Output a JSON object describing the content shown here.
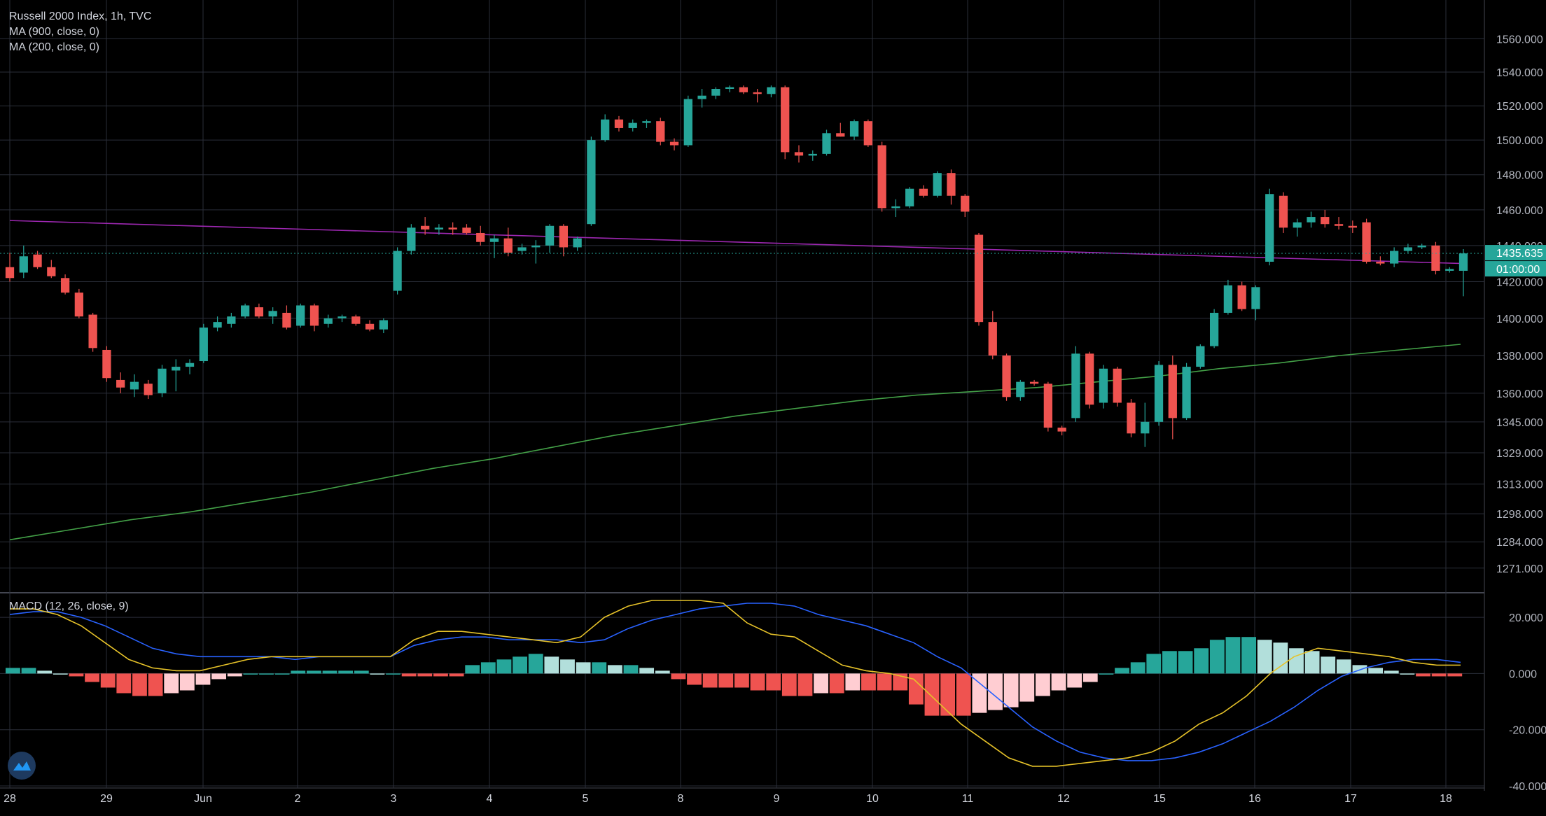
{
  "title": "Russell 2000 Index, 1h, TVC",
  "indicators": {
    "ma900": "MA (900, close, 0)",
    "ma200": "MA (200, close, 0)",
    "macd": "MACD (12, 26, close, 9)"
  },
  "colors": {
    "background": "#000000",
    "grid": "#2a2e39",
    "up": "#26a69a",
    "down": "#ef5350",
    "ma900": "#9c27b0",
    "ma200": "#43a047",
    "macd_line": "#2962ff",
    "signal_line": "#e6c229",
    "hist_up_strong": "#26a69a",
    "hist_up_weak": "#b2dfdb",
    "hist_down_strong": "#ef5350",
    "hist_down_weak": "#ffcdd2",
    "last_price_badge": "#26a69a"
  },
  "price_axis": {
    "ticks": [
      "1560.000",
      "1540.000",
      "1520.000",
      "1500.000",
      "1480.000",
      "1460.000",
      "1440.000",
      "1420.000",
      "1400.000",
      "1380.000",
      "1360.000",
      "1345.000",
      "1329.000",
      "1313.000",
      "1298.000",
      "1284.000",
      "1271.000"
    ],
    "last_price_label": "1435.635",
    "countdown_label": "01:00:00"
  },
  "macd_axis": {
    "ticks": [
      "20.000",
      "0.000",
      "-20.000",
      "-40.000"
    ]
  },
  "time_axis": {
    "labels": [
      "28",
      "29",
      "Jun",
      "2",
      "3",
      "4",
      "5",
      "8",
      "9",
      "10",
      "11",
      "12",
      "15",
      "16",
      "17",
      "18"
    ]
  },
  "chart_data": [
    {
      "type": "candlestick",
      "title": "Russell 2000 Index, 1h, TVC",
      "y_scale": "log",
      "ylim": [
        1262,
        1575
      ],
      "session_labels": [
        "28",
        "29",
        "Jun",
        "2",
        "3",
        "4",
        "5",
        "8",
        "9",
        "10",
        "11",
        "12",
        "15",
        "16",
        "17",
        "18"
      ],
      "candles": [
        [
          1428,
          1436,
          1420,
          1422
        ],
        [
          1425,
          1440,
          1422,
          1434
        ],
        [
          1435,
          1437,
          1427,
          1428
        ],
        [
          1428,
          1432,
          1422,
          1423
        ],
        [
          1422,
          1424,
          1413,
          1414
        ],
        [
          1414,
          1416,
          1400,
          1401
        ],
        [
          1402,
          1403,
          1382,
          1384
        ],
        [
          1383,
          1385,
          1366,
          1368
        ],
        [
          1367,
          1371,
          1360,
          1363
        ],
        [
          1362,
          1370,
          1358,
          1366
        ],
        [
          1365,
          1367,
          1357,
          1359
        ],
        [
          1360,
          1375,
          1358,
          1373
        ],
        [
          1372,
          1378,
          1361,
          1374
        ],
        [
          1374,
          1378,
          1370,
          1376
        ],
        [
          1377,
          1397,
          1376,
          1395
        ],
        [
          1395,
          1401,
          1393,
          1398
        ],
        [
          1397,
          1403,
          1395,
          1401
        ],
        [
          1401,
          1408,
          1400,
          1407
        ],
        [
          1406,
          1408,
          1400,
          1401
        ],
        [
          1401,
          1406,
          1397,
          1404
        ],
        [
          1403,
          1407,
          1394,
          1395
        ],
        [
          1396,
          1408,
          1395,
          1407
        ],
        [
          1407,
          1408,
          1393,
          1396
        ],
        [
          1397,
          1402,
          1395,
          1400
        ],
        [
          1400,
          1402,
          1398,
          1401
        ],
        [
          1401,
          1402,
          1396,
          1397
        ],
        [
          1397,
          1399,
          1393,
          1394
        ],
        [
          1394,
          1400,
          1392,
          1399
        ],
        [
          1415,
          1439,
          1413,
          1437
        ],
        [
          1437,
          1452,
          1435,
          1450
        ],
        [
          1451,
          1456,
          1446,
          1449
        ],
        [
          1449,
          1452,
          1446,
          1450
        ],
        [
          1450,
          1453,
          1446,
          1449
        ],
        [
          1450,
          1452,
          1446,
          1447
        ],
        [
          1447,
          1451,
          1440,
          1442
        ],
        [
          1442,
          1446,
          1433,
          1444
        ],
        [
          1444,
          1450,
          1434,
          1436
        ],
        [
          1437,
          1441,
          1435,
          1439
        ],
        [
          1439,
          1443,
          1430,
          1440
        ],
        [
          1440,
          1452,
          1436,
          1451
        ],
        [
          1451,
          1452,
          1434,
          1439
        ],
        [
          1439,
          1445,
          1437,
          1444
        ],
        [
          1452,
          1502,
          1451,
          1500
        ],
        [
          1500,
          1515,
          1499,
          1512
        ],
        [
          1512,
          1514,
          1505,
          1507
        ],
        [
          1507,
          1512,
          1505,
          1510
        ],
        [
          1510,
          1512,
          1507,
          1511
        ],
        [
          1511,
          1513,
          1497,
          1499
        ],
        [
          1499,
          1501,
          1494,
          1497
        ],
        [
          1497,
          1526,
          1496,
          1524
        ],
        [
          1524,
          1530,
          1519,
          1526
        ],
        [
          1526,
          1531,
          1524,
          1530
        ],
        [
          1530,
          1532,
          1528,
          1531
        ],
        [
          1531,
          1532,
          1527,
          1528
        ],
        [
          1528,
          1530,
          1522,
          1527
        ],
        [
          1527,
          1532,
          1525,
          1531
        ],
        [
          1531,
          1532,
          1489,
          1493
        ],
        [
          1493,
          1497,
          1487,
          1491
        ],
        [
          1491,
          1494,
          1488,
          1492
        ],
        [
          1492,
          1506,
          1491,
          1504
        ],
        [
          1504,
          1510,
          1502,
          1502
        ],
        [
          1502,
          1512,
          1500,
          1511
        ],
        [
          1511,
          1512,
          1496,
          1497
        ],
        [
          1497,
          1499,
          1459,
          1461
        ],
        [
          1461,
          1466,
          1456,
          1462
        ],
        [
          1462,
          1473,
          1461,
          1472
        ],
        [
          1472,
          1474,
          1467,
          1468
        ],
        [
          1468,
          1482,
          1467,
          1481
        ],
        [
          1481,
          1483,
          1463,
          1468
        ],
        [
          1468,
          1469,
          1456,
          1459
        ],
        [
          1446,
          1447,
          1396,
          1398
        ],
        [
          1398,
          1404,
          1378,
          1380
        ],
        [
          1380,
          1381,
          1356,
          1358
        ],
        [
          1358,
          1367,
          1356,
          1366
        ],
        [
          1366,
          1367,
          1364,
          1365
        ],
        [
          1365,
          1366,
          1340,
          1342
        ],
        [
          1342,
          1343,
          1338,
          1340
        ],
        [
          1347,
          1385,
          1345,
          1381
        ],
        [
          1381,
          1382,
          1352,
          1354
        ],
        [
          1355,
          1375,
          1352,
          1373
        ],
        [
          1373,
          1374,
          1353,
          1355
        ],
        [
          1355,
          1357,
          1337,
          1339
        ],
        [
          1339,
          1355,
          1332,
          1345
        ],
        [
          1345,
          1377,
          1343,
          1375
        ],
        [
          1375,
          1380,
          1336,
          1347
        ],
        [
          1347,
          1376,
          1346,
          1374
        ],
        [
          1374,
          1386,
          1373,
          1385
        ],
        [
          1385,
          1405,
          1384,
          1403
        ],
        [
          1403,
          1421,
          1402,
          1418
        ],
        [
          1418,
          1420,
          1404,
          1405
        ],
        [
          1405,
          1418,
          1399,
          1417
        ],
        [
          1431,
          1472,
          1429,
          1469
        ],
        [
          1468,
          1470,
          1447,
          1450
        ],
        [
          1450,
          1455,
          1445,
          1453
        ],
        [
          1453,
          1459,
          1450,
          1456
        ],
        [
          1456,
          1460,
          1450,
          1452
        ],
        [
          1452,
          1456,
          1449,
          1451
        ],
        [
          1451,
          1454,
          1447,
          1450
        ],
        [
          1453,
          1455,
          1430,
          1431
        ],
        [
          1431,
          1434,
          1429,
          1430
        ],
        [
          1430,
          1439,
          1428,
          1437
        ],
        [
          1437,
          1441,
          1436,
          1439
        ],
        [
          1439,
          1441,
          1438,
          1440
        ],
        [
          1440,
          1442,
          1424,
          1426
        ],
        [
          1426,
          1428,
          1425,
          1427
        ],
        [
          1426,
          1438,
          1412,
          1435.635
        ]
      ],
      "ma900": {
        "start": 1454,
        "end": 1430
      },
      "ma200": [
        1285,
        1290,
        1295,
        1299,
        1304,
        1309,
        1315,
        1321,
        1326,
        1332,
        1338,
        1343,
        1348,
        1352,
        1356,
        1359,
        1361,
        1363,
        1366,
        1369,
        1373,
        1376,
        1380,
        1383,
        1386
      ]
    },
    {
      "type": "macd",
      "title": "MACD (12, 26, close, 9)",
      "ylim": [
        -40,
        28
      ],
      "macd_line": [
        21,
        22,
        22,
        20,
        17,
        13,
        9,
        7,
        6,
        6,
        6,
        6,
        5,
        6,
        6,
        6,
        6,
        10,
        12,
        13,
        13,
        12,
        12,
        12,
        11,
        12,
        16,
        19,
        21,
        23,
        24,
        25,
        25,
        24,
        21,
        19,
        17,
        14,
        11,
        6,
        2,
        -5,
        -12,
        -19,
        -24,
        -28,
        -30,
        -31,
        -31,
        -30,
        -28,
        -25,
        -21,
        -17,
        -12,
        -6,
        -1,
        2,
        4,
        5,
        5,
        4
      ],
      "signal_line": [
        23,
        23,
        21,
        17,
        11,
        5,
        2,
        1,
        1,
        3,
        5,
        6,
        6,
        6,
        6,
        6,
        6,
        12,
        15,
        15,
        14,
        13,
        12,
        11,
        13,
        20,
        24,
        26,
        26,
        26,
        25,
        18,
        14,
        13,
        8,
        3,
        1,
        0,
        -2,
        -10,
        -18,
        -24,
        -30,
        -33,
        -33,
        -32,
        -31,
        -30,
        -28,
        -24,
        -18,
        -14,
        -8,
        0,
        6,
        9,
        8,
        7,
        6,
        4,
        3,
        3
      ],
      "histogram": [
        2,
        2,
        1,
        0,
        -1,
        -3,
        -5,
        -7,
        -8,
        -8,
        -7,
        -6,
        -4,
        -2,
        -1,
        0,
        0,
        0,
        1,
        1,
        1,
        1,
        1,
        0,
        0,
        -1,
        -1,
        -1,
        -1,
        3,
        4,
        5,
        6,
        7,
        6,
        5,
        4,
        4,
        3,
        3,
        2,
        1,
        -2,
        -4,
        -5,
        -5,
        -5,
        -6,
        -6,
        -8,
        -8,
        -7,
        -7,
        -6,
        -6,
        -6,
        -6,
        -11,
        -15,
        -15,
        -15,
        -14,
        -13,
        -12,
        -10,
        -8,
        -6,
        -5,
        -3,
        0,
        2,
        4,
        7,
        8,
        8,
        9,
        12,
        13,
        13,
        12,
        11,
        9,
        8,
        6,
        5,
        3,
        2,
        1,
        0,
        -1,
        -1,
        -1
      ],
      "zero_line": 0
    }
  ]
}
